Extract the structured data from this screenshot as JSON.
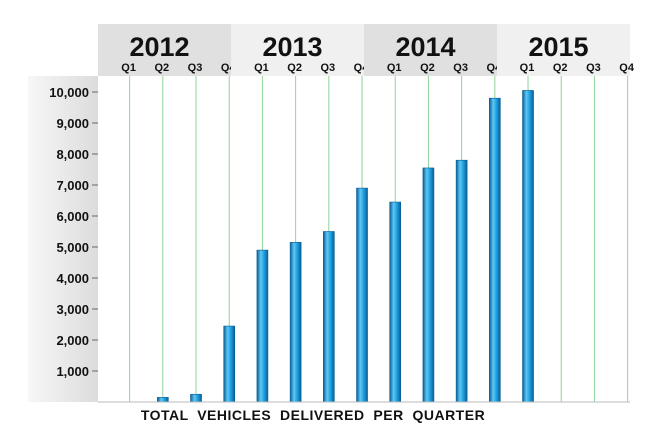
{
  "chart_data": {
    "type": "bar",
    "title": "",
    "xlabel": "TOTAL  VEHICLES  DELIVERED  PER  QUARTER",
    "ylabel": "",
    "ylim": [
      0,
      10000
    ],
    "yticks": [
      {
        "value": 1000,
        "label": "1,000"
      },
      {
        "value": 2000,
        "label": "2,000"
      },
      {
        "value": 3000,
        "label": "3,000"
      },
      {
        "value": 4000,
        "label": "4,000"
      },
      {
        "value": 5000,
        "label": "5,000"
      },
      {
        "value": 6000,
        "label": "6,000"
      },
      {
        "value": 7000,
        "label": "7,000"
      },
      {
        "value": 8000,
        "label": "8,000"
      },
      {
        "value": 9000,
        "label": "9,000"
      },
      {
        "value": 10000,
        "label": "10,000"
      }
    ],
    "years": [
      "2012",
      "2013",
      "2014",
      "2015"
    ],
    "quarters": [
      "Q1",
      "Q2",
      "Q3",
      "Q4"
    ],
    "categories": [
      "2012 Q1",
      "2012 Q2",
      "2012 Q3",
      "2012 Q4",
      "2013 Q1",
      "2013 Q2",
      "2013 Q3",
      "2013 Q4",
      "2014 Q1",
      "2014 Q2",
      "2014 Q3",
      "2014 Q4",
      "2015 Q1",
      "2015 Q2",
      "2015 Q3",
      "2015 Q4"
    ],
    "values": [
      0,
      150,
      250,
      2450,
      4900,
      5150,
      5500,
      6900,
      6450,
      7550,
      7800,
      9800,
      10050,
      null,
      null,
      null
    ],
    "grid": "vertical",
    "legend": "none",
    "colors": {
      "bar_light": "#5ec8f5",
      "bar_mid": "#1fa0e0",
      "bar_dark": "#0a5e96",
      "gridline": "#8fd49a",
      "header_light": "#f0f0f0",
      "header_dark": "#e0e0e0"
    }
  }
}
